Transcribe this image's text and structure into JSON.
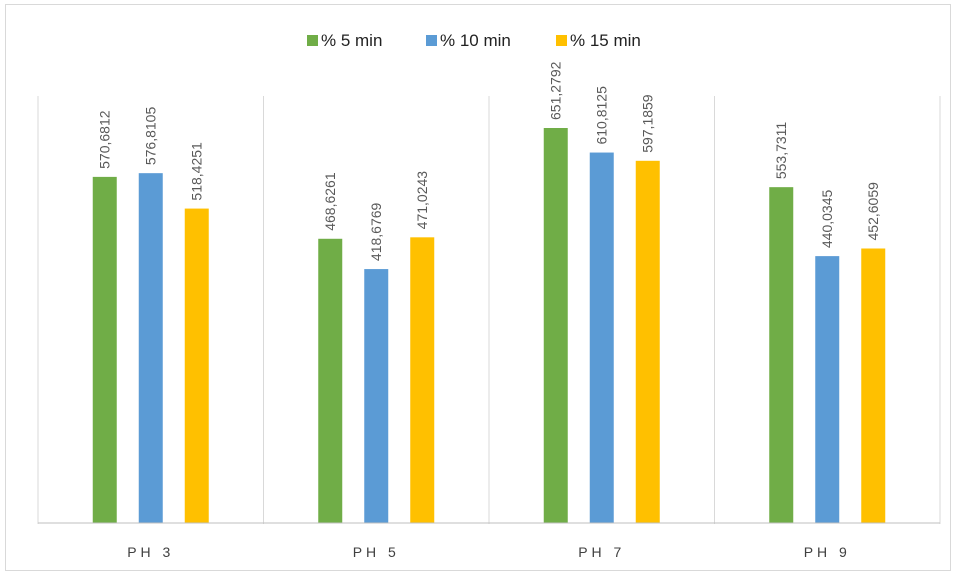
{
  "chart_data": {
    "type": "bar",
    "title": "",
    "xlabel": "",
    "ylabel": "",
    "categories": [
      "PH 3",
      "PH 5",
      "PH 7",
      "PH 9"
    ],
    "series": [
      {
        "name": "% 5 min",
        "color": "#70ad47",
        "values": [
          570.6812,
          468.6261,
          651.2792,
          553.7311
        ],
        "labels": [
          "570,6812",
          "468,6261",
          "651,2792",
          "553,7311"
        ]
      },
      {
        "name": "% 10 min",
        "color": "#5b9bd5",
        "values": [
          576.8105,
          418.6769,
          610.8125,
          440.0345
        ],
        "labels": [
          "576,8105",
          "418,6769",
          "610,8125",
          "440,0345"
        ]
      },
      {
        "name": "% 15 min",
        "color": "#ffc000",
        "values": [
          518.4251,
          471.0243,
          597.1859,
          452.6059
        ],
        "labels": [
          "518,4251",
          "471,0243",
          "597,1859",
          "452,6059"
        ]
      }
    ],
    "ylim": [
      0,
      850
    ],
    "grid": false,
    "legend_position": "top"
  }
}
